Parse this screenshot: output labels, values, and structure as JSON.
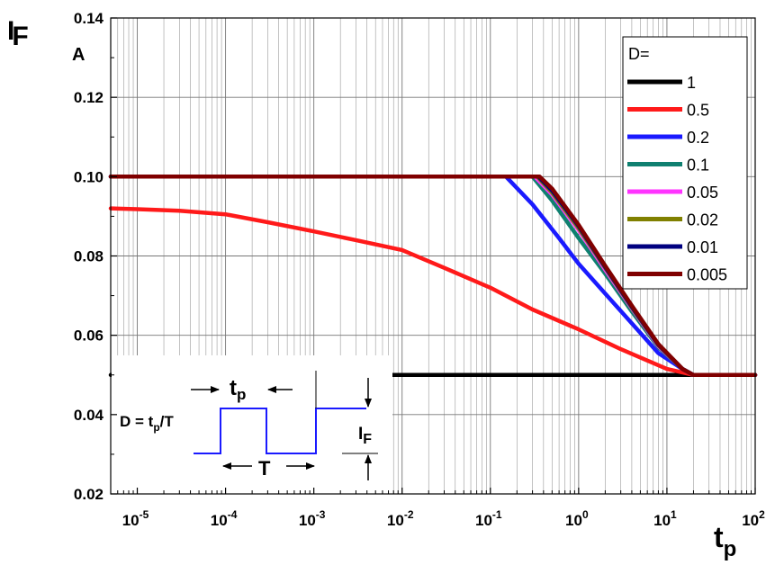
{
  "chart_data": {
    "type": "line",
    "x_scale": "log",
    "xlim": [
      5e-06,
      100
    ],
    "ylim": [
      0.02,
      0.14
    ],
    "grid": true,
    "ylabel": "I",
    "ylabel_sub": "F",
    "yunit": "A",
    "xlabel": "t",
    "xlabel_sub": "p",
    "y_ticks": [
      "0.02",
      "0.04",
      "0.06",
      "0.08",
      "0.10",
      "0.12",
      "0.14"
    ],
    "x_tick_exponents": [
      "-5",
      "-4",
      "-3",
      "-2",
      "-1",
      "0",
      "1",
      "2"
    ],
    "legend": {
      "title": "D=",
      "position": "top-right"
    },
    "series": [
      {
        "name": "1",
        "color": "#000000",
        "x": [
          5e-06,
          100
        ],
        "y": [
          0.05,
          0.05
        ]
      },
      {
        "name": "0.5",
        "color": "#ff1a1a",
        "x": [
          5e-06,
          1e-05,
          3e-05,
          0.0001,
          0.0003,
          0.001,
          0.003,
          0.01,
          0.03,
          0.1,
          0.3,
          1,
          3,
          10,
          20,
          100
        ],
        "y": [
          0.092,
          0.0918,
          0.0914,
          0.0905,
          0.0885,
          0.0862,
          0.084,
          0.0815,
          0.077,
          0.072,
          0.0665,
          0.0615,
          0.0565,
          0.0515,
          0.05,
          0.05
        ]
      },
      {
        "name": "0.2",
        "color": "#1a1aff",
        "x": [
          5e-06,
          0.15,
          0.3,
          0.6,
          1,
          2,
          4,
          8,
          15,
          20,
          100
        ],
        "y": [
          0.1,
          0.1,
          0.093,
          0.0845,
          0.078,
          0.0705,
          0.063,
          0.0555,
          0.0515,
          0.05,
          0.05
        ]
      },
      {
        "name": "0.1",
        "color": "#0f8070",
        "x": [
          5e-06,
          0.3,
          0.5,
          1,
          2,
          4,
          8,
          15,
          20,
          100
        ],
        "y": [
          0.1,
          0.1,
          0.094,
          0.0845,
          0.0755,
          0.066,
          0.057,
          0.0515,
          0.05,
          0.05
        ]
      },
      {
        "name": "0.05",
        "color": "#ff33ff",
        "x": [
          5e-06,
          0.32,
          0.5,
          1,
          2,
          4,
          8,
          15,
          20,
          100
        ],
        "y": [
          0.1,
          0.1,
          0.0955,
          0.0865,
          0.0765,
          0.0668,
          0.0573,
          0.0515,
          0.05,
          0.05
        ]
      },
      {
        "name": "0.02",
        "color": "#808000",
        "x": [
          5e-06,
          0.34,
          0.5,
          1,
          2,
          4,
          8,
          15,
          20,
          100
        ],
        "y": [
          0.1,
          0.1,
          0.096,
          0.087,
          0.077,
          0.067,
          0.0575,
          0.0515,
          0.05,
          0.05
        ]
      },
      {
        "name": "0.01",
        "color": "#000080",
        "x": [
          5e-06,
          0.35,
          0.5,
          1,
          2,
          4,
          8,
          15,
          20,
          100
        ],
        "y": [
          0.1,
          0.1,
          0.0965,
          0.0875,
          0.0772,
          0.0672,
          0.0576,
          0.0515,
          0.05,
          0.05
        ]
      },
      {
        "name": "0.005",
        "color": "#800000",
        "x": [
          5e-06,
          0.36,
          0.5,
          1,
          2,
          4,
          8,
          15,
          20,
          100
        ],
        "y": [
          0.1,
          0.1,
          0.097,
          0.0878,
          0.0775,
          0.0675,
          0.0578,
          0.0515,
          0.05,
          0.05
        ]
      }
    ],
    "inset": {
      "formula_prefix": "D = t",
      "formula_sub": "p",
      "formula_suffix": "/T",
      "pulse_label": "t",
      "pulse_label_sub": "p",
      "period_label": "T",
      "amp_label": "I",
      "amp_label_sub": "F",
      "pulse_color": "#1a1aff"
    }
  }
}
